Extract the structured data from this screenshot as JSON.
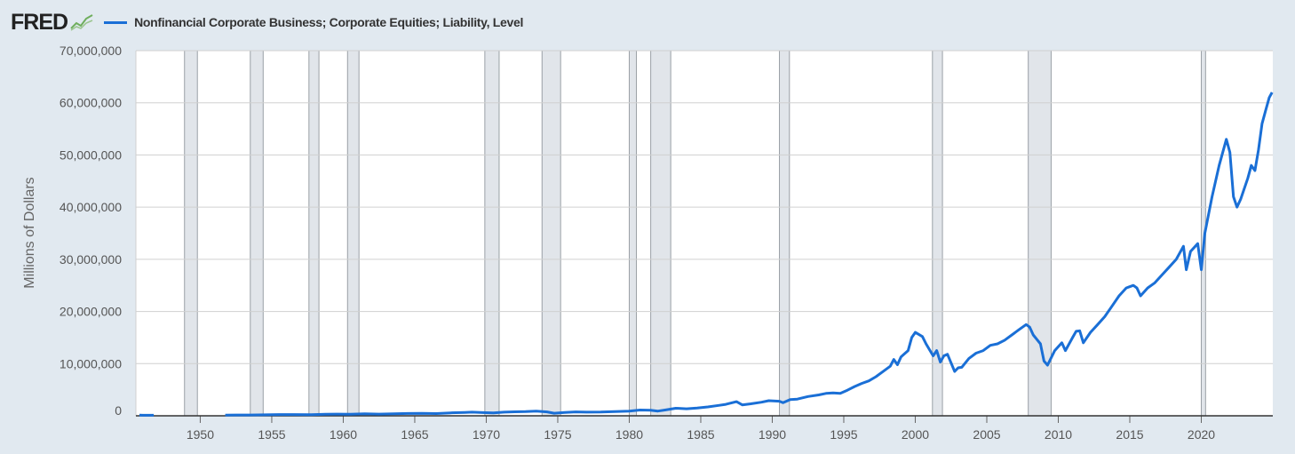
{
  "header": {
    "logo_text": "FRED",
    "logo_icon": "line-chart-icon",
    "legend_color": "#1a6fd6"
  },
  "chart_data": {
    "type": "line",
    "title": "",
    "series": [
      {
        "name": "Nonfinancial Corporate Business; Corporate Equities; Liability, Level",
        "color": "#1a6fd6",
        "points": [
          [
            1945.75,
            120000
          ],
          [
            1946.0,
            110000
          ],
          [
            1946.75,
            100000
          ],
          [
            1951.75,
            140000
          ],
          [
            1952.5,
            150000
          ],
          [
            1953.5,
            160000
          ],
          [
            1954.5,
            190000
          ],
          [
            1955.5,
            230000
          ],
          [
            1956.5,
            240000
          ],
          [
            1957.75,
            220000
          ],
          [
            1958.75,
            290000
          ],
          [
            1959.5,
            320000
          ],
          [
            1960.5,
            310000
          ],
          [
            1961.5,
            380000
          ],
          [
            1962.5,
            330000
          ],
          [
            1963.5,
            400000
          ],
          [
            1964.5,
            440000
          ],
          [
            1965.5,
            480000
          ],
          [
            1966.5,
            430000
          ],
          [
            1967.5,
            560000
          ],
          [
            1968.5,
            650000
          ],
          [
            1969.0,
            700000
          ],
          [
            1969.75,
            620000
          ],
          [
            1970.5,
            540000
          ],
          [
            1971.25,
            700000
          ],
          [
            1972.0,
            760000
          ],
          [
            1972.75,
            800000
          ],
          [
            1973.5,
            900000
          ],
          [
            1974.25,
            750000
          ],
          [
            1974.75,
            500000
          ],
          [
            1975.5,
            650000
          ],
          [
            1976.25,
            750000
          ],
          [
            1977.0,
            700000
          ],
          [
            1978.0,
            720000
          ],
          [
            1979.0,
            800000
          ],
          [
            1980.0,
            900000
          ],
          [
            1980.75,
            1100000
          ],
          [
            1981.5,
            1050000
          ],
          [
            1982.0,
            900000
          ],
          [
            1982.5,
            1100000
          ],
          [
            1983.25,
            1450000
          ],
          [
            1984.0,
            1350000
          ],
          [
            1984.75,
            1500000
          ],
          [
            1985.5,
            1700000
          ],
          [
            1986.25,
            2000000
          ],
          [
            1986.75,
            2200000
          ],
          [
            1987.5,
            2700000
          ],
          [
            1987.9,
            2100000
          ],
          [
            1988.5,
            2300000
          ],
          [
            1989.25,
            2600000
          ],
          [
            1989.75,
            2900000
          ],
          [
            1990.5,
            2800000
          ],
          [
            1990.75,
            2500000
          ],
          [
            1991.25,
            3100000
          ],
          [
            1991.75,
            3200000
          ],
          [
            1992.5,
            3700000
          ],
          [
            1993.25,
            4000000
          ],
          [
            1993.75,
            4300000
          ],
          [
            1994.25,
            4400000
          ],
          [
            1994.75,
            4300000
          ],
          [
            1995.25,
            4900000
          ],
          [
            1995.75,
            5600000
          ],
          [
            1996.25,
            6200000
          ],
          [
            1996.75,
            6700000
          ],
          [
            1997.25,
            7500000
          ],
          [
            1997.75,
            8500000
          ],
          [
            1998.25,
            9500000
          ],
          [
            1998.5,
            10800000
          ],
          [
            1998.75,
            9800000
          ],
          [
            1999.0,
            11300000
          ],
          [
            1999.5,
            12500000
          ],
          [
            1999.75,
            15000000
          ],
          [
            2000.0,
            16000000
          ],
          [
            2000.5,
            15200000
          ],
          [
            2000.75,
            13800000
          ],
          [
            2001.25,
            11500000
          ],
          [
            2001.5,
            12500000
          ],
          [
            2001.75,
            10300000
          ],
          [
            2002.0,
            11500000
          ],
          [
            2002.25,
            11800000
          ],
          [
            2002.75,
            8500000
          ],
          [
            2003.0,
            9200000
          ],
          [
            2003.25,
            9300000
          ],
          [
            2003.75,
            11000000
          ],
          [
            2004.25,
            12000000
          ],
          [
            2004.75,
            12500000
          ],
          [
            2005.25,
            13500000
          ],
          [
            2005.75,
            13800000
          ],
          [
            2006.25,
            14500000
          ],
          [
            2006.75,
            15500000
          ],
          [
            2007.25,
            16500000
          ],
          [
            2007.75,
            17500000
          ],
          [
            2008.0,
            17000000
          ],
          [
            2008.25,
            15500000
          ],
          [
            2008.75,
            13800000
          ],
          [
            2009.0,
            10500000
          ],
          [
            2009.25,
            9700000
          ],
          [
            2009.75,
            12500000
          ],
          [
            2010.25,
            14000000
          ],
          [
            2010.5,
            12500000
          ],
          [
            2011.0,
            15000000
          ],
          [
            2011.25,
            16200000
          ],
          [
            2011.5,
            16300000
          ],
          [
            2011.75,
            14000000
          ],
          [
            2012.25,
            16000000
          ],
          [
            2012.75,
            17500000
          ],
          [
            2013.25,
            19000000
          ],
          [
            2013.75,
            21000000
          ],
          [
            2014.25,
            23000000
          ],
          [
            2014.75,
            24500000
          ],
          [
            2015.25,
            25000000
          ],
          [
            2015.5,
            24500000
          ],
          [
            2015.75,
            23000000
          ],
          [
            2016.25,
            24500000
          ],
          [
            2016.75,
            25500000
          ],
          [
            2017.25,
            27000000
          ],
          [
            2017.75,
            28500000
          ],
          [
            2018.25,
            30000000
          ],
          [
            2018.75,
            32500000
          ],
          [
            2018.95,
            28000000
          ],
          [
            2019.25,
            31500000
          ],
          [
            2019.75,
            33000000
          ],
          [
            2020.0,
            28000000
          ],
          [
            2020.25,
            35000000
          ],
          [
            2020.75,
            42000000
          ],
          [
            2021.25,
            48000000
          ],
          [
            2021.75,
            53000000
          ],
          [
            2022.0,
            50500000
          ],
          [
            2022.25,
            42000000
          ],
          [
            2022.5,
            40000000
          ],
          [
            2022.75,
            41500000
          ],
          [
            2023.25,
            45500000
          ],
          [
            2023.5,
            48000000
          ],
          [
            2023.75,
            47000000
          ],
          [
            2024.0,
            51000000
          ],
          [
            2024.25,
            56000000
          ],
          [
            2024.5,
            58500000
          ],
          [
            2024.75,
            61000000
          ],
          [
            2024.95,
            62000000
          ]
        ]
      }
    ],
    "x_ticks": [
      "1950",
      "1955",
      "1960",
      "1965",
      "1970",
      "1975",
      "1980",
      "1985",
      "1990",
      "1995",
      "2000",
      "2005",
      "2010",
      "2015",
      "2020"
    ],
    "y_ticks": [
      "0",
      "10,000,000",
      "20,000,000",
      "30,000,000",
      "40,000,000",
      "50,000,000",
      "60,000,000",
      "70,000,000"
    ],
    "xlim": [
      1945.5,
      2025.0
    ],
    "ylim": [
      0,
      70000000
    ],
    "xlabel": "",
    "ylabel": "Millions of Dollars",
    "grid": true,
    "recessions": [
      [
        1948.9,
        1949.8
      ],
      [
        1953.5,
        1954.4
      ],
      [
        1957.6,
        1958.3
      ],
      [
        1960.3,
        1961.1
      ],
      [
        1969.9,
        1970.9
      ],
      [
        1973.9,
        1975.2
      ],
      [
        1980.0,
        1980.5
      ],
      [
        1981.5,
        1982.9
      ],
      [
        1990.5,
        1991.2
      ],
      [
        2001.2,
        2001.9
      ],
      [
        2007.9,
        2009.5
      ],
      [
        2020.0,
        2020.3
      ]
    ]
  }
}
